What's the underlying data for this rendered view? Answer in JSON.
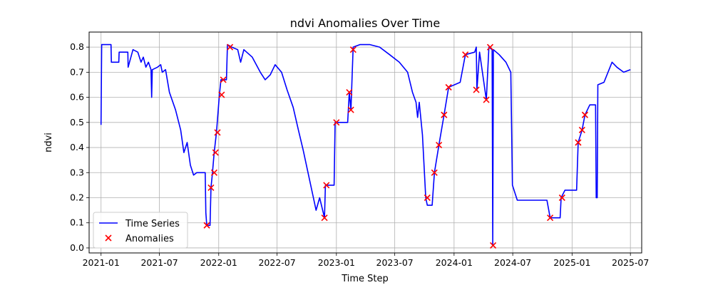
{
  "chart_data": {
    "type": "line",
    "title": "ndvi Anomalies Over Time",
    "xlabel": "Time Step",
    "ylabel": "ndvi",
    "x_ticks": [
      "2021-01",
      "2021-07",
      "2022-01",
      "2022-07",
      "2023-01",
      "2023-07",
      "2024-01",
      "2024-07",
      "2025-01",
      "2025-07"
    ],
    "y_ticks": [
      "0.0",
      "0.1",
      "0.2",
      "0.3",
      "0.4",
      "0.5",
      "0.6",
      "0.7",
      "0.8"
    ],
    "xlim": [
      "2020-11-25",
      "2025-08-05"
    ],
    "ylim": [
      -0.02,
      0.86
    ],
    "grid": true,
    "legend_position": "lower-left",
    "legend": [
      "Time Series",
      "Anomalies"
    ],
    "colors": {
      "line": "#0000ff",
      "anomaly": "#ff0000"
    },
    "series": [
      {
        "name": "Time Series",
        "points": [
          [
            "2021-01-01",
            0.49
          ],
          [
            "2021-01-03",
            0.81
          ],
          [
            "2021-02-01",
            0.81
          ],
          [
            "2021-02-02",
            0.74
          ],
          [
            "2021-02-25",
            0.74
          ],
          [
            "2021-02-26",
            0.78
          ],
          [
            "2021-03-25",
            0.78
          ],
          [
            "2021-03-26",
            0.72
          ],
          [
            "2021-04-10",
            0.79
          ],
          [
            "2021-04-25",
            0.78
          ],
          [
            "2021-05-05",
            0.74
          ],
          [
            "2021-05-12",
            0.76
          ],
          [
            "2021-05-20",
            0.72
          ],
          [
            "2021-05-28",
            0.74
          ],
          [
            "2021-06-05",
            0.71
          ],
          [
            "2021-06-07",
            0.6
          ],
          [
            "2021-06-09",
            0.71
          ],
          [
            "2021-06-25",
            0.72
          ],
          [
            "2021-07-05",
            0.73
          ],
          [
            "2021-07-10",
            0.7
          ],
          [
            "2021-07-20",
            0.71
          ],
          [
            "2021-08-01",
            0.62
          ],
          [
            "2021-08-20",
            0.55
          ],
          [
            "2021-09-05",
            0.47
          ],
          [
            "2021-09-15",
            0.38
          ],
          [
            "2021-09-25",
            0.42
          ],
          [
            "2021-10-05",
            0.33
          ],
          [
            "2021-10-15",
            0.29
          ],
          [
            "2021-10-25",
            0.3
          ],
          [
            "2021-11-20",
            0.3
          ],
          [
            "2021-11-22",
            0.14
          ],
          [
            "2021-11-25",
            0.09
          ],
          [
            "2021-12-05",
            0.09
          ],
          [
            "2021-12-08",
            0.24
          ],
          [
            "2021-12-12",
            0.29
          ],
          [
            "2021-12-18",
            0.38
          ],
          [
            "2021-12-25",
            0.46
          ],
          [
            "2022-01-03",
            0.61
          ],
          [
            "2022-01-08",
            0.67
          ],
          [
            "2022-01-25",
            0.67
          ],
          [
            "2022-01-28",
            0.81
          ],
          [
            "2022-02-10",
            0.8
          ],
          [
            "2022-03-01",
            0.79
          ],
          [
            "2022-03-10",
            0.74
          ],
          [
            "2022-03-20",
            0.79
          ],
          [
            "2022-04-15",
            0.76
          ],
          [
            "2022-05-10",
            0.7
          ],
          [
            "2022-05-25",
            0.67
          ],
          [
            "2022-06-10",
            0.69
          ],
          [
            "2022-06-25",
            0.73
          ],
          [
            "2022-07-15",
            0.7
          ],
          [
            "2022-08-01",
            0.63
          ],
          [
            "2022-08-20",
            0.56
          ],
          [
            "2022-09-05",
            0.47
          ],
          [
            "2022-09-20",
            0.39
          ],
          [
            "2022-10-05",
            0.3
          ],
          [
            "2022-10-20",
            0.21
          ],
          [
            "2022-10-30",
            0.15
          ],
          [
            "2022-11-10",
            0.2
          ],
          [
            "2022-11-25",
            0.12
          ],
          [
            "2022-11-28",
            0.25
          ],
          [
            "2022-12-25",
            0.25
          ],
          [
            "2022-12-28",
            0.5
          ],
          [
            "2023-02-05",
            0.5
          ],
          [
            "2023-02-10",
            0.62
          ],
          [
            "2023-02-15",
            0.55
          ],
          [
            "2023-02-22",
            0.8
          ],
          [
            "2023-03-15",
            0.81
          ],
          [
            "2023-04-15",
            0.81
          ],
          [
            "2023-05-15",
            0.8
          ],
          [
            "2023-06-15",
            0.77
          ],
          [
            "2023-07-15",
            0.74
          ],
          [
            "2023-08-10",
            0.7
          ],
          [
            "2023-08-25",
            0.62
          ],
          [
            "2023-09-05",
            0.58
          ],
          [
            "2023-09-10",
            0.52
          ],
          [
            "2023-09-15",
            0.58
          ],
          [
            "2023-09-25",
            0.45
          ],
          [
            "2023-10-05",
            0.2
          ],
          [
            "2023-10-10",
            0.17
          ],
          [
            "2023-10-25",
            0.17
          ],
          [
            "2023-11-01",
            0.3
          ],
          [
            "2023-11-15",
            0.41
          ],
          [
            "2023-12-01",
            0.53
          ],
          [
            "2023-12-15",
            0.64
          ],
          [
            "2024-01-20",
            0.66
          ],
          [
            "2024-02-05",
            0.77
          ],
          [
            "2024-03-05",
            0.78
          ],
          [
            "2024-03-10",
            0.8
          ],
          [
            "2024-03-12",
            0.63
          ],
          [
            "2024-03-20",
            0.78
          ],
          [
            "2024-04-10",
            0.59
          ],
          [
            "2024-04-18",
            0.8
          ],
          [
            "2024-04-28",
            0.79
          ],
          [
            "2024-04-30",
            0.01
          ],
          [
            "2024-05-02",
            0.79
          ],
          [
            "2024-05-20",
            0.77
          ],
          [
            "2024-06-10",
            0.74
          ],
          [
            "2024-06-25",
            0.7
          ],
          [
            "2024-06-30",
            0.25
          ],
          [
            "2024-07-15",
            0.19
          ],
          [
            "2024-08-10",
            0.19
          ],
          [
            "2024-09-10",
            0.19
          ],
          [
            "2024-10-15",
            0.19
          ],
          [
            "2024-10-25",
            0.12
          ],
          [
            "2024-11-25",
            0.12
          ],
          [
            "2024-11-28",
            0.2
          ],
          [
            "2024-12-10",
            0.23
          ],
          [
            "2025-01-15",
            0.23
          ],
          [
            "2025-01-20",
            0.42
          ],
          [
            "2025-02-01",
            0.47
          ],
          [
            "2025-02-10",
            0.53
          ],
          [
            "2025-02-25",
            0.57
          ],
          [
            "2025-03-15",
            0.57
          ],
          [
            "2025-03-17",
            0.2
          ],
          [
            "2025-03-20",
            0.2
          ],
          [
            "2025-03-22",
            0.65
          ],
          [
            "2025-04-10",
            0.66
          ],
          [
            "2025-05-05",
            0.74
          ],
          [
            "2025-05-20",
            0.72
          ],
          [
            "2025-06-10",
            0.7
          ],
          [
            "2025-07-01",
            0.71
          ]
        ]
      },
      {
        "name": "Anomalies",
        "marker": "x",
        "points": [
          [
            "2021-11-25",
            0.09
          ],
          [
            "2021-12-08",
            0.24
          ],
          [
            "2021-12-18",
            0.3
          ],
          [
            "2021-12-22",
            0.38
          ],
          [
            "2021-12-28",
            0.46
          ],
          [
            "2022-01-10",
            0.61
          ],
          [
            "2022-01-15",
            0.67
          ],
          [
            "2022-02-05",
            0.8
          ],
          [
            "2022-11-25",
            0.12
          ],
          [
            "2022-12-01",
            0.25
          ],
          [
            "2023-01-01",
            0.5
          ],
          [
            "2023-02-10",
            0.62
          ],
          [
            "2023-02-15",
            0.55
          ],
          [
            "2023-02-22",
            0.79
          ],
          [
            "2023-10-10",
            0.2
          ],
          [
            "2023-11-01",
            0.3
          ],
          [
            "2023-11-15",
            0.41
          ],
          [
            "2023-12-01",
            0.53
          ],
          [
            "2023-12-15",
            0.64
          ],
          [
            "2024-02-05",
            0.77
          ],
          [
            "2024-03-10",
            0.63
          ],
          [
            "2024-04-10",
            0.59
          ],
          [
            "2024-04-22",
            0.8
          ],
          [
            "2024-05-01",
            0.01
          ],
          [
            "2024-10-25",
            0.12
          ],
          [
            "2024-12-01",
            0.2
          ],
          [
            "2025-01-20",
            0.42
          ],
          [
            "2025-02-01",
            0.47
          ],
          [
            "2025-02-10",
            0.53
          ]
        ]
      }
    ]
  }
}
